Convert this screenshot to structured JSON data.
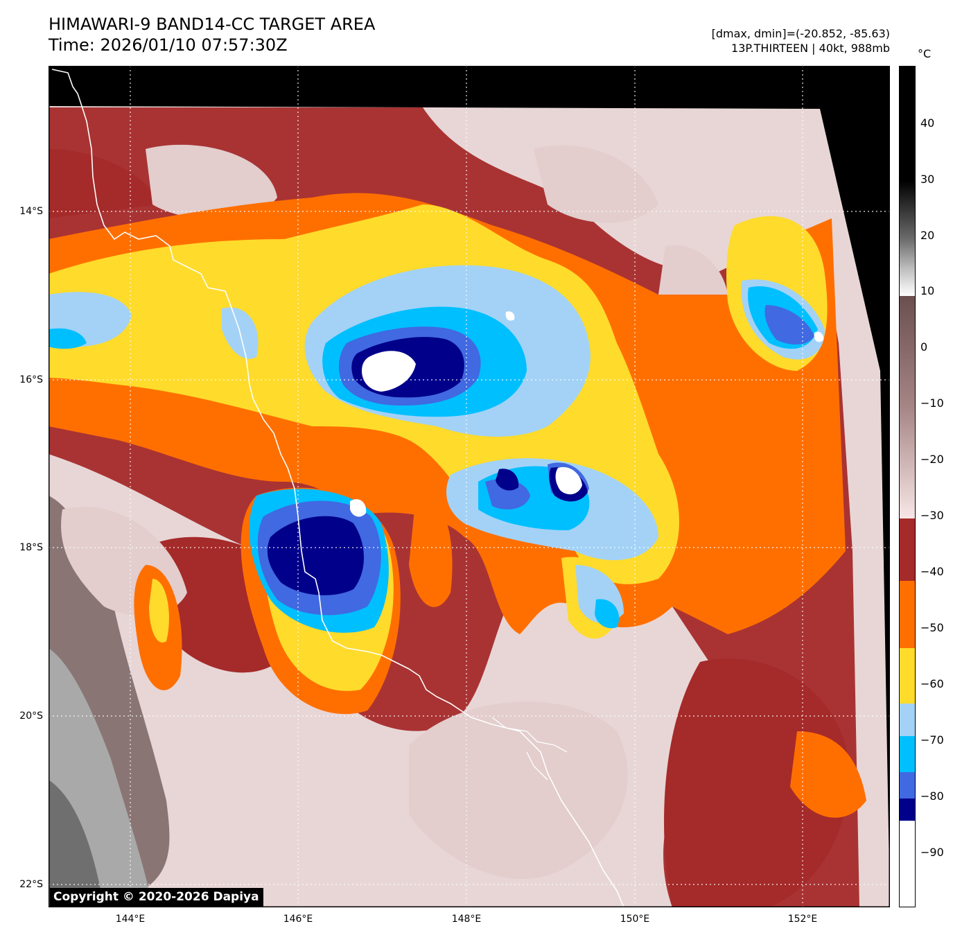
{
  "header": {
    "title": "HIMAWARI-9 BAND14-CC TARGET AREA",
    "time": "Time: 2026/01/10 07:57:30Z",
    "dmax_dmin": "[dmax, dmin]=(-20.852, -85.63)",
    "storm": "13P.THIRTEEN | 40kt, 988mb"
  },
  "map": {
    "lat_labels": [
      "14°S",
      "16°S",
      "18°S",
      "20°S",
      "22°S"
    ],
    "lon_labels": [
      "144°E",
      "146°E",
      "148°E",
      "150°E",
      "152°E"
    ],
    "grid_style": "dotted-white",
    "coastline_color": "#ffffff"
  },
  "colorbar": {
    "unit": "°C",
    "ticks": [
      "40",
      "30",
      "20",
      "10",
      "0",
      "−10",
      "−20",
      "−30",
      "−40",
      "−50",
      "−60",
      "−70",
      "−80",
      "−90"
    ],
    "range": [
      -100,
      50
    ],
    "bands": [
      {
        "from": -100,
        "to": -84,
        "color": "#ffffff"
      },
      {
        "from": -84,
        "to": -80,
        "color": "#00008b"
      },
      {
        "from": -80,
        "to": -76,
        "color": "#4169e1"
      },
      {
        "from": -76,
        "to": -70,
        "color": "#00bfff"
      },
      {
        "from": -70,
        "to": -64,
        "color": "#a3d2f6"
      },
      {
        "from": -64,
        "to": -55,
        "color": "#ffdb2b"
      },
      {
        "from": -55,
        "to": -43,
        "color": "#ff6f00"
      },
      {
        "from": -43,
        "to": -32,
        "color": "#a52a2a"
      },
      {
        "from": -32,
        "to": 9,
        "color": "gradient-pink-brown"
      },
      {
        "from": 9,
        "to": 50,
        "color": "gradient-gray"
      }
    ]
  },
  "copyright": "Copyright © 2020-2026 Dapiya"
}
